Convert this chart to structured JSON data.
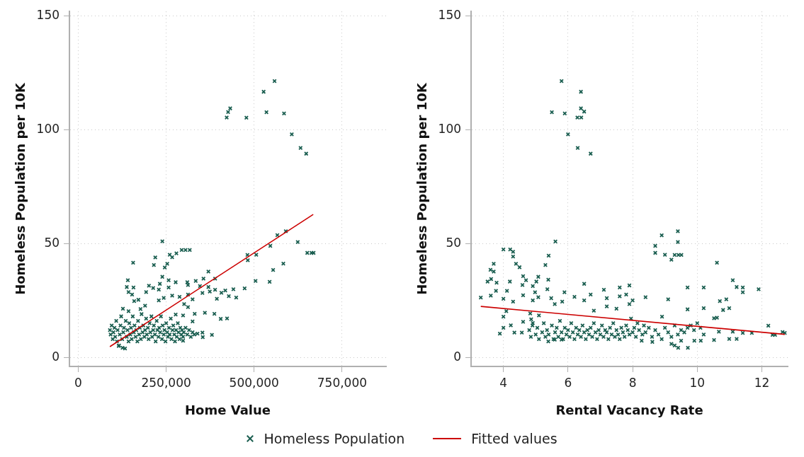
{
  "chart_data": [
    {
      "type": "scatter",
      "xlabel": "Home Value",
      "ylabel": "Homeless Population per 10K",
      "xlim": [
        -25000,
        875000
      ],
      "xticks": [
        0,
        {
          "value": 250000,
          "label": "250,000"
        },
        {
          "value": 500000,
          "label": "500,000"
        },
        {
          "value": 750000,
          "label": "750,000"
        }
      ],
      "ylim": [
        -4,
        152
      ],
      "yticks": [
        0,
        50,
        100,
        150
      ],
      "grid": true,
      "legend": "bottom",
      "series": [
        {
          "name": "Homeless Population",
          "color": "#1a5e50",
          "marker": "cross",
          "x": [
            558000,
            527000,
            432000,
            426000,
            422000,
            478000,
            535000,
            585000,
            607000,
            632000,
            648000,
            590000,
            566000,
            624000,
            651000,
            663000,
            669000,
            546000,
            506000,
            481000,
            482000,
            583000,
            554000,
            504000,
            544000,
            239000,
            294000,
            305000,
            317000,
            279000,
            260000,
            267000,
            219000,
            156000,
            215000,
            253000,
            246000,
            370000,
            389000,
            356000,
            239000,
            257000,
            277000,
            310000,
            334000,
            141000,
            138000,
            157000,
            143000,
            153000,
            201000,
            213000,
            193000,
            232000,
            229000,
            257000,
            312000,
            346000,
            370000,
            353000,
            374000,
            389000,
            407000,
            418000,
            441000,
            473000,
            428000,
            449000,
            394000,
            243000,
            267000,
            288000,
            229000,
            312000,
            325000,
            301000,
            312000,
            171000,
            159000,
            127000,
            143000,
            177000,
            190000,
            331000,
            360000,
            387000,
            405000,
            423000,
            325000,
            298000,
            277000,
            353000,
            354000,
            380000,
            339000,
            298000,
            126000,
            116000,
            133000,
            90000,
            92000,
            95000,
            98000,
            100000,
            103000,
            105000,
            108000,
            110000,
            112000,
            115000,
            118000,
            120000,
            122000,
            125000,
            128000,
            130000,
            135000,
            138000,
            140000,
            143000,
            145000,
            148000,
            150000,
            152000,
            155000,
            158000,
            160000,
            163000,
            165000,
            168000,
            170000,
            173000,
            175000,
            178000,
            180000,
            183000,
            185000,
            188000,
            190000,
            193000,
            195000,
            198000,
            200000,
            203000,
            205000,
            208000,
            210000,
            213000,
            215000,
            218000,
            220000,
            223000,
            225000,
            228000,
            230000,
            233000,
            235000,
            238000,
            240000,
            243000,
            245000,
            248000,
            250000,
            253000,
            255000,
            258000,
            260000,
            263000,
            265000,
            268000,
            270000,
            273000,
            275000,
            278000,
            280000,
            283000,
            285000,
            288000,
            290000,
            293000,
            295000,
            298000,
            300000,
            305000,
            310000,
            315000,
            320000,
            325000,
            330000
          ],
          "values": [
            121.4,
            116.7,
            109.4,
            107.8,
            105.4,
            105.3,
            107.7,
            107.2,
            98,
            92,
            89.5,
            55.4,
            53.7,
            50.7,
            45.9,
            45.9,
            45.9,
            49,
            45.1,
            45,
            42.7,
            41.2,
            38.4,
            33.6,
            33.2,
            51,
            47.2,
            47.2,
            47.2,
            45.7,
            45.1,
            44,
            43.9,
            41.6,
            40.6,
            41.1,
            39.5,
            37.7,
            34.6,
            34.6,
            35.4,
            33.9,
            33,
            33,
            33.6,
            33.9,
            30.9,
            30.7,
            28.7,
            27.6,
            31.5,
            30.5,
            28.7,
            32.3,
            29.8,
            30.7,
            31.8,
            31.3,
            30.9,
            28.3,
            28.9,
            29.7,
            28.4,
            29.4,
            29.9,
            30.3,
            26.9,
            26.3,
            25.7,
            26.1,
            27.1,
            26.6,
            25,
            27.6,
            25.5,
            23.4,
            22.1,
            25.3,
            24.7,
            21.4,
            20.3,
            21.2,
            22.7,
            19.1,
            19.6,
            19.1,
            16.9,
            17.1,
            15.8,
            18.4,
            18.8,
            10.9,
            8.9,
            9.9,
            10.4,
            7.3,
            4.2,
            5.2,
            3.9,
            12,
            10,
            14,
            8,
            11,
            13,
            9,
            16,
            7,
            12,
            5,
            10,
            14,
            18,
            8,
            11,
            13,
            16,
            9,
            12,
            7,
            15,
            10,
            13,
            8,
            18,
            11,
            14,
            9,
            12,
            7,
            16,
            10,
            13,
            8,
            19,
            11,
            14,
            9,
            12,
            17,
            10,
            13,
            8,
            15,
            11,
            18,
            9,
            12,
            14,
            10,
            7,
            16,
            12,
            9,
            13,
            11,
            18,
            8,
            14,
            10,
            12,
            7,
            15,
            11,
            9,
            13,
            10,
            17,
            8,
            12,
            14,
            10,
            7,
            12,
            9,
            15,
            11,
            8,
            13,
            10,
            12,
            9,
            11,
            13,
            10,
            12,
            9,
            11,
            10
          ]
        },
        {
          "name": "Fitted values",
          "color": "#cc0000",
          "type": "line",
          "marker": "none",
          "x": [
            90000,
            668000
          ],
          "values": [
            4.7,
            62.8
          ]
        }
      ]
    },
    {
      "type": "scatter",
      "xlabel": "Rental Vacancy Rate",
      "ylabel": "Homeless Population per 10K",
      "xlim": [
        3,
        12.8
      ],
      "xticks": [
        4,
        6,
        8,
        10,
        12
      ],
      "ylim": [
        -4,
        152
      ],
      "yticks": [
        0,
        50,
        100,
        150
      ],
      "grid": true,
      "series": [
        {
          "color": "#1a5e50",
          "marker": "cross",
          "x": [
            5.8,
            6.4,
            5.5,
            5.9,
            6.4,
            6.5,
            6.29,
            6.41,
            6.0,
            6.3,
            6.7,
            5.61,
            8.9,
            9.4,
            9.4,
            8.7,
            8.7,
            9.0,
            9.2,
            9.3,
            9.42,
            9.51,
            10.61,
            4.0,
            4.21,
            4.3,
            4.3,
            4.39,
            4.5,
            3.7,
            3.6,
            3.7,
            3.62,
            3.51,
            3.79,
            3.77,
            3.61,
            3.3,
            5.4,
            5.3,
            5.39,
            5.36,
            5.48,
            4.61,
            4.7,
            4.59,
            4.61,
            4.2,
            4.11,
            4.0,
            4.3,
            4.91,
            5.08,
            5.02,
            4.98,
            4.91,
            5.08,
            5.89,
            6.2,
            6.5,
            6.7,
            6.5,
            5.82,
            5.59,
            7.11,
            7.2,
            7.2,
            7.6,
            7.6,
            7.9,
            7.8,
            8.0,
            7.9,
            6.8,
            7.5,
            8.4,
            9.1,
            9.7,
            9.7,
            10.2,
            10.2,
            11.1,
            11.22,
            11.41,
            11.41,
            11.9,
            10.7,
            10.9,
            10.8,
            10.99,
            10.52,
            10.61,
            12.2,
            12.33,
            12.41,
            12.64,
            12.71,
            11.69,
            11.41,
            11.1,
            10.99,
            11.22,
            10.67,
            10.52,
            10.11,
            9.91,
            9.71,
            9.41,
            9.5,
            9.2,
            9.3,
            3.89,
            4.0,
            4.09,
            4.0,
            4.23,
            4.34,
            4.57,
            4.61,
            4.83,
            4.86,
            4.91,
            5.1,
            5.39,
            5.59,
            5.8,
            8.61,
            8.28,
            8.91,
            4.8,
            4.85,
            4.9,
            5.0,
            5.05,
            5.1,
            5.2,
            5.25,
            5.3,
            5.35,
            5.4,
            5.5,
            5.55,
            5.6,
            5.65,
            5.7,
            5.75,
            5.8,
            5.85,
            5.9,
            5.95,
            6.0,
            6.05,
            6.1,
            6.15,
            6.2,
            6.25,
            6.3,
            6.35,
            6.4,
            6.45,
            6.5,
            6.55,
            6.6,
            6.65,
            6.7,
            6.75,
            6.8,
            6.85,
            6.9,
            6.95,
            7.0,
            7.05,
            7.1,
            7.15,
            7.2,
            7.25,
            7.3,
            7.35,
            7.4,
            7.45,
            7.5,
            7.55,
            7.6,
            7.65,
            7.7,
            7.75,
            7.8,
            7.85,
            7.9,
            7.95,
            8.0,
            8.05,
            8.1,
            8.15,
            8.2,
            8.3,
            8.35,
            8.4,
            8.5,
            8.6,
            8.7,
            8.8,
            8.9,
            9.0,
            9.1,
            9.2,
            9.3,
            9.4,
            9.5,
            9.6,
            9.7,
            9.8,
            9.9,
            10.0,
            10.1,
            10.2
          ],
          "values": [
            121.4,
            116.7,
            107.7,
            107.2,
            109.4,
            108,
            105.4,
            105.4,
            98,
            92,
            89.5,
            50.9,
            53.6,
            55.4,
            50.7,
            49,
            45.9,
            45.1,
            42.9,
            45,
            45,
            45,
            41.6,
            47.4,
            47.4,
            46.4,
            44.3,
            41.1,
            39.6,
            41.1,
            38.5,
            37.7,
            34.4,
            33.3,
            32.8,
            29.2,
            27.1,
            26.3,
            44.7,
            40.6,
            34.1,
            29.9,
            26,
            35.7,
            33.9,
            31.8,
            27.3,
            33.3,
            29.2,
            25.7,
            24.5,
            31.3,
            35.4,
            33.3,
            28.6,
            25,
            26.4,
            28.6,
            26.6,
            32.3,
            27.6,
            25,
            24.5,
            23.4,
            29.7,
            26,
            22.4,
            30.7,
            26.8,
            31.6,
            27.6,
            25,
            23.4,
            20.5,
            21.4,
            26.4,
            25.5,
            30.7,
            21.1,
            30.7,
            21.6,
            33.9,
            30.9,
            30.7,
            28.6,
            29.9,
            24.7,
            25.5,
            20.8,
            21.6,
            17.2,
            17.4,
            13.9,
            9.9,
            9.9,
            11.1,
            10.7,
            10.7,
            10.7,
            11.3,
            8.1,
            8.1,
            11.3,
            7.6,
            7.3,
            7.3,
            4.2,
            4.2,
            7.3,
            5.9,
            5.2,
            10.4,
            13,
            20.3,
            17.9,
            14.1,
            10.9,
            10.9,
            15.6,
            19.3,
            16.7,
            15.1,
            18.4,
            7,
            7.8,
            7.8,
            6.8,
            7.3,
            17.9,
            12,
            9,
            14,
            10,
            13,
            8,
            11,
            15,
            9,
            12,
            10,
            14,
            8,
            11,
            13,
            9,
            16,
            11,
            8,
            13,
            10,
            12,
            9,
            15,
            11,
            8,
            13,
            10,
            12,
            9,
            14,
            11,
            8,
            12,
            10,
            13,
            9,
            15,
            11,
            8,
            12,
            10,
            14,
            9,
            12,
            11,
            8,
            13,
            10,
            15,
            9,
            12,
            10,
            8,
            13,
            11,
            9,
            14,
            12,
            10,
            17,
            11,
            13,
            9,
            15,
            12,
            10,
            14,
            11,
            13,
            9,
            12,
            10,
            8,
            13,
            11,
            9,
            14,
            10,
            12,
            11,
            13,
            14,
            12,
            15,
            13,
            10
          ]
        },
        {
          "color": "#cc0000",
          "type": "line",
          "marker": "none",
          "x": [
            3.3,
            12.71
          ],
          "values": [
            22.4,
            10.1
          ]
        }
      ]
    }
  ]
}
